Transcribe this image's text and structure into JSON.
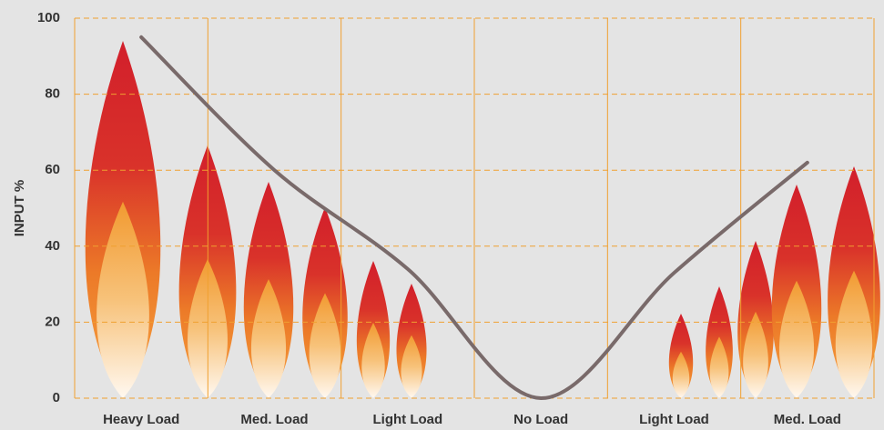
{
  "chart_data": {
    "type": "line",
    "y_label": "INPUT %",
    "categories": [
      "Heavy Load",
      "Med. Load",
      "Light Load",
      "No Load",
      "Light Load",
      "Med. Load"
    ],
    "series": [
      {
        "name": "INPUT %",
        "color": "#796a6a",
        "values": [
          95,
          60,
          34,
          0,
          33,
          62
        ]
      }
    ],
    "ylim": [
      0,
      100
    ],
    "yticks": [
      0,
      20,
      40,
      60,
      80,
      100
    ],
    "grid": true,
    "grid_color": "#f0a030"
  }
}
